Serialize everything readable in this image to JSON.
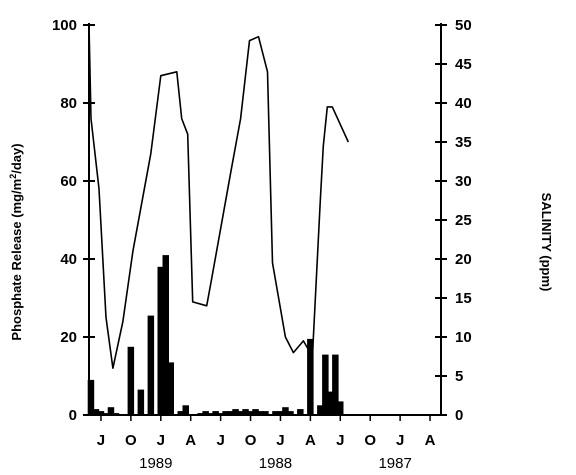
{
  "chart_data": {
    "type": "bar+line",
    "title": "",
    "ylabel_left": "Phosphate Release (mg/m2/day)",
    "ylabel_left_parts": {
      "prefix": "Phosphate Release (mg/m",
      "sup": "2",
      "suffix": "/day)"
    },
    "ylabel_right": "SALINITY (ppm)",
    "ylim_left": [
      0,
      100
    ],
    "ylim_right": [
      0,
      50
    ],
    "yticks_left": [
      0,
      20,
      40,
      60,
      80,
      100
    ],
    "yticks_right": [
      0,
      5,
      10,
      15,
      20,
      25,
      30,
      35,
      40,
      45,
      50
    ],
    "x_month_labels": [
      {
        "label": "J",
        "month": 0
      },
      {
        "label": "O",
        "month": 3
      },
      {
        "label": "J",
        "month": 6
      },
      {
        "label": "A",
        "month": 9
      },
      {
        "label": "J",
        "month": 12
      },
      {
        "label": "O",
        "month": 15
      },
      {
        "label": "J",
        "month": 18
      },
      {
        "label": "A",
        "month": 21
      },
      {
        "label": "J",
        "month": 24
      },
      {
        "label": "O",
        "month": 27
      },
      {
        "label": "J",
        "month": 30
      },
      {
        "label": "A",
        "month": 33
      }
    ],
    "year_labels": [
      {
        "label": "1989",
        "month": 5.5
      },
      {
        "label": "1988",
        "month": 17.5
      },
      {
        "label": "1987",
        "month": 29.5
      }
    ],
    "grid": false,
    "phosphate_release": {
      "name": "Phosphate Release",
      "style": "bar",
      "axis": "left",
      "month": [
        -1,
        -0.5,
        0,
        0.5,
        1,
        1.5,
        2,
        3,
        4,
        5,
        6,
        6.5,
        7,
        8,
        8.5,
        9,
        10,
        10.5,
        11,
        11.5,
        12,
        12.5,
        13,
        13.5,
        14,
        14.5,
        15,
        15.5,
        16,
        16.5,
        17,
        17.5,
        18,
        18.5,
        19,
        19.5,
        20,
        20.5,
        21,
        22,
        22.5,
        23,
        23.5,
        24,
        24.5,
        25,
        26,
        27,
        28,
        29,
        30,
        30.5,
        31,
        32
      ],
      "values": [
        9,
        1.5,
        1,
        0.5,
        2,
        0.5,
        0,
        17.5,
        6.5,
        25.5,
        38,
        41,
        13.5,
        1,
        2.5,
        0,
        0.5,
        1,
        0.5,
        1,
        0.5,
        1,
        1,
        1.5,
        1,
        1.5,
        1,
        1.5,
        1,
        1,
        0,
        1,
        1,
        2,
        1,
        0,
        1.5,
        0,
        19.5,
        2.5,
        15.5,
        6,
        15.5,
        3.5,
        0,
        0,
        0,
        0,
        0,
        0,
        0,
        0,
        0,
        0
      ]
    },
    "salinity": {
      "name": "Salinity",
      "style": "line",
      "axis": "right",
      "month": [
        -1.2,
        -1.0,
        -0.2,
        0.5,
        1.2,
        2.2,
        3.2,
        5.0,
        6.0,
        7.6,
        8.1,
        8.7,
        9.2,
        10.6,
        11.1,
        13.0,
        14.0,
        14.9,
        15.8,
        16.7,
        17.2,
        18.5,
        19.3,
        20.3,
        21.2,
        22.0,
        22.3,
        22.7,
        23.2,
        24.8
      ],
      "values": [
        50,
        38,
        29,
        12.5,
        6,
        12,
        21,
        33.5,
        43.5,
        44,
        38,
        36,
        14.5,
        14,
        17.5,
        31,
        38,
        48,
        48.5,
        44,
        19.5,
        10,
        8,
        9.5,
        7.5,
        27.5,
        34.5,
        39.5,
        39.5,
        35
      ]
    }
  }
}
